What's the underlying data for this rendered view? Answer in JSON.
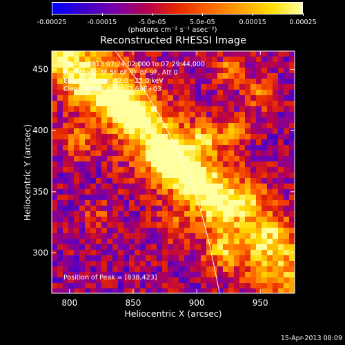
{
  "colorbar": {
    "ticks": [
      "-0.00025",
      "-0.00015",
      "-5.0e-05",
      "5.0e-05",
      "0.00015",
      "0.00025"
    ],
    "tick_values": [
      -0.00025,
      -0.00015,
      -5e-05,
      5e-05,
      0.00015,
      0.00025
    ],
    "range": [
      -0.00025,
      0.00025
    ],
    "unit": "(photons cm⁻² s⁻¹ asec⁻²)",
    "colors": [
      "#0000ff",
      "#3c00c8",
      "#7800aa",
      "#b40050",
      "#e62800",
      "#ff6400",
      "#ffa000",
      "#ffdc00",
      "#ffffa0"
    ]
  },
  "annotations": {
    "time_range": "15-Apr-2013 07:24:02.000 to 07:29:44.000",
    "detectors": "Detectors: 3F 5F 6F 7F 8F 9F, Att 0",
    "energy": "Energy Range: 12.0 - 25.0 keV",
    "clean": "Clean    Total Counts: 7.69E+03",
    "peak": "Position of Peak = [838,423]"
  },
  "footer": {
    "timestamp": "15-Apr-2013 08:09"
  },
  "chart_data": {
    "type": "heatmap",
    "title": "Reconstructed RHESSI Image",
    "xlabel": "Heliocentric X (arcsec)",
    "ylabel": "Heliocentric Y (arcsec)",
    "xlim": [
      786,
      977
    ],
    "ylim": [
      267,
      465
    ],
    "xticks": [
      800,
      850,
      900,
      950
    ],
    "yticks": [
      300,
      350,
      400,
      450
    ],
    "limb_curve": [
      [
        836,
        465
      ],
      [
        860,
        432
      ],
      [
        880,
        395
      ],
      [
        897,
        355
      ],
      [
        908,
        318
      ],
      [
        918,
        267
      ]
    ],
    "emission_peaks": [
      {
        "x": 838,
        "y": 423,
        "v": 1.0
      },
      {
        "x": 855,
        "y": 410,
        "v": 0.9
      },
      {
        "x": 884,
        "y": 372,
        "v": 1.0
      },
      {
        "x": 872,
        "y": 383,
        "v": 0.9
      },
      {
        "x": 900,
        "y": 358,
        "v": 0.85
      },
      {
        "x": 916,
        "y": 342,
        "v": 0.75
      },
      {
        "x": 815,
        "y": 435,
        "v": 0.8
      },
      {
        "x": 905,
        "y": 392,
        "v": 0.65
      },
      {
        "x": 930,
        "y": 400,
        "v": 0.6
      },
      {
        "x": 926,
        "y": 450,
        "v": 0.6
      },
      {
        "x": 950,
        "y": 430,
        "v": 0.55
      },
      {
        "x": 940,
        "y": 345,
        "v": 0.5
      },
      {
        "x": 958,
        "y": 310,
        "v": 0.45
      },
      {
        "x": 920,
        "y": 300,
        "v": 0.5
      },
      {
        "x": 805,
        "y": 390,
        "v": 0.55
      },
      {
        "x": 795,
        "y": 455,
        "v": 0.6
      },
      {
        "x": 820,
        "y": 330,
        "v": 0.4
      },
      {
        "x": 880,
        "y": 320,
        "v": 0.35
      }
    ]
  }
}
